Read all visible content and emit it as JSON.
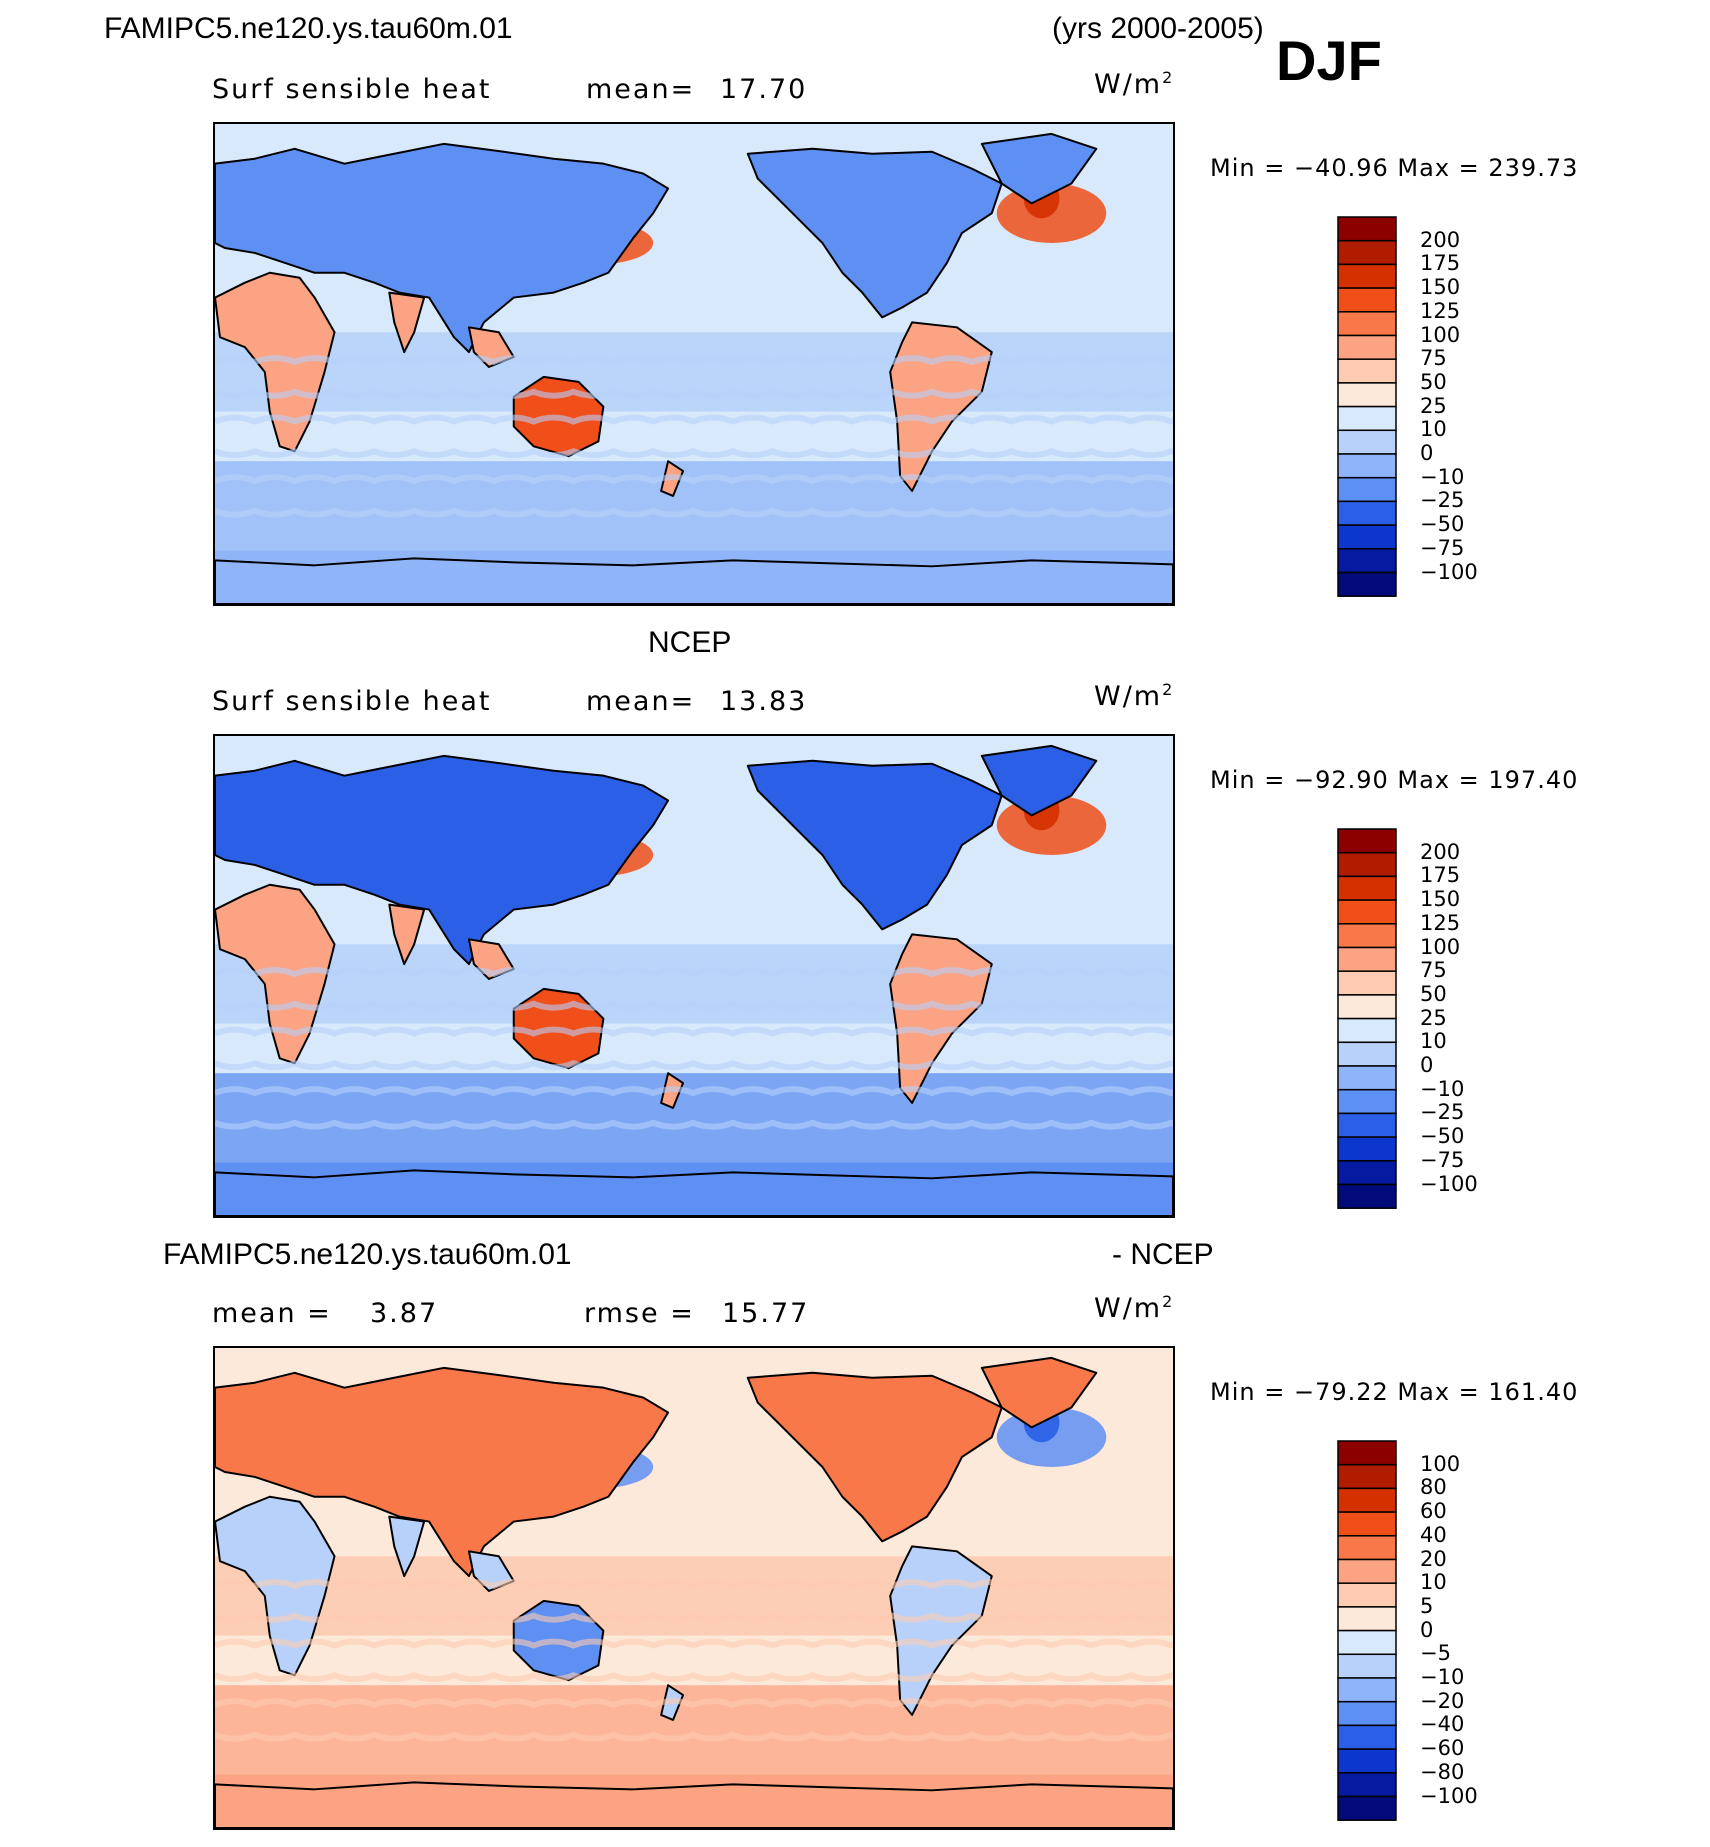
{
  "header": {
    "case_name": "FAMIPC5.ne120.ys.tau60m.01",
    "years": "(yrs 2000-2005)",
    "season": "DJF"
  },
  "panels": [
    {
      "title": "",
      "variable": "Surf sensible heat",
      "stat1_label": "mean=",
      "stat1_value": "17.70",
      "stat2_label": "",
      "stat2_value": "",
      "units_base": "W/m",
      "units_exp": "2",
      "minmax": "Min = −40.96 Max = 239.73",
      "colorbar": [
        "200",
        "175",
        "150",
        "125",
        "100",
        "75",
        "50",
        "25",
        "10",
        "0",
        "−10",
        "−25",
        "−50",
        "−75",
        "−100"
      ],
      "colors": [
        "#8c0000",
        "#b01c00",
        "#d53000",
        "#f04f1a",
        "#f8784a",
        "#fba383",
        "#fdcbb1",
        "#fde9da",
        "#d8e9fb",
        "#b7d1fa",
        "#8fb4f7",
        "#5e8ff2",
        "#2a5fe6",
        "#0d36cc",
        "#051aa0",
        "#000a78"
      ]
    },
    {
      "title": "NCEP",
      "variable": "Surf sensible heat",
      "stat1_label": "mean=",
      "stat1_value": "13.83",
      "stat2_label": "",
      "stat2_value": "",
      "units_base": "W/m",
      "units_exp": "2",
      "minmax": "Min = −92.90 Max = 197.40",
      "colorbar": [
        "200",
        "175",
        "150",
        "125",
        "100",
        "75",
        "50",
        "25",
        "10",
        "0",
        "−10",
        "−25",
        "−50",
        "−75",
        "−100"
      ],
      "colors": [
        "#8c0000",
        "#b01c00",
        "#d53000",
        "#f04f1a",
        "#f8784a",
        "#fba383",
        "#fdcbb1",
        "#fde9da",
        "#d8e9fb",
        "#b7d1fa",
        "#8fb4f7",
        "#5e8ff2",
        "#2a5fe6",
        "#0d36cc",
        "#051aa0",
        "#000a78"
      ]
    },
    {
      "title": "FAMIPC5.ne120.ys.tau60m.01",
      "title_right": "- NCEP",
      "variable": "",
      "stat1_label": "mean =",
      "stat1_value": "3.87",
      "stat2_label": "rmse =",
      "stat2_value": "15.77",
      "units_base": "W/m",
      "units_exp": "2",
      "minmax": "Min = −79.22 Max = 161.40",
      "colorbar": [
        "100",
        "80",
        "60",
        "40",
        "20",
        "10",
        "5",
        "0",
        "−5",
        "−10",
        "−20",
        "−40",
        "−60",
        "−80",
        "−100"
      ],
      "colors": [
        "#8c0000",
        "#b01c00",
        "#d53000",
        "#f04f1a",
        "#f8784a",
        "#fba383",
        "#fdcbb1",
        "#fde9da",
        "#d8e9fb",
        "#b7d1fa",
        "#8fb4f7",
        "#5e8ff2",
        "#2a5fe6",
        "#0d36cc",
        "#051aa0",
        "#000a78"
      ]
    }
  ],
  "chart_data": [
    {
      "type": "heatmap",
      "title": "FAMIPC5.ne120.ys.tau60m.01 Surf sensible heat DJF",
      "units": "W/m2",
      "mean": 17.7,
      "min": -40.96,
      "max": 239.73,
      "levels": [
        -100,
        -75,
        -50,
        -25,
        -10,
        0,
        10,
        25,
        50,
        75,
        100,
        125,
        150,
        175,
        200
      ]
    },
    {
      "type": "heatmap",
      "title": "NCEP Surf sensible heat DJF",
      "units": "W/m2",
      "mean": 13.83,
      "min": -92.9,
      "max": 197.4,
      "levels": [
        -100,
        -75,
        -50,
        -25,
        -10,
        0,
        10,
        25,
        50,
        75,
        100,
        125,
        150,
        175,
        200
      ]
    },
    {
      "type": "heatmap",
      "title": "FAMIPC5.ne120.ys.tau60m.01 - NCEP",
      "units": "W/m2",
      "mean": 3.87,
      "rmse": 15.77,
      "min": -79.22,
      "max": 161.4,
      "levels": [
        -100,
        -80,
        -60,
        -40,
        -20,
        -10,
        -5,
        0,
        5,
        10,
        20,
        40,
        60,
        80,
        100
      ]
    }
  ]
}
